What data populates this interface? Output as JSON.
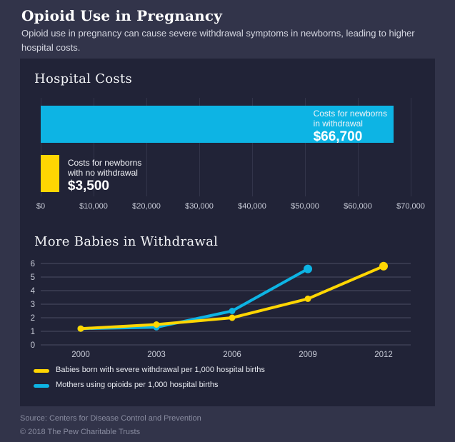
{
  "page": {
    "title": "Opioid Use in Pregnancy",
    "subtitle": "Opioid use in pregnancy can cause severe withdrawal symptoms in newborns, leading to higher hospital costs."
  },
  "colors": {
    "background": "#32344a",
    "panel": "#212337",
    "cyan": "#0db4e4",
    "yellow": "#ffd602",
    "bar_gridline": "#32344a",
    "line_gridline": "#4b4e63",
    "tick_label": "#c9ccd8",
    "footer_text": "#898ca0"
  },
  "chart_data": [
    {
      "type": "bar",
      "orientation": "horizontal",
      "title": "Hospital Costs",
      "xlim": [
        0,
        70000
      ],
      "x_tick_values": [
        0,
        10000,
        20000,
        30000,
        40000,
        50000,
        60000,
        70000
      ],
      "x_ticks": [
        "$0",
        "$10,000",
        "$20,000",
        "$30,000",
        "$40,000",
        "$50,000",
        "$60,000",
        "$70,000"
      ],
      "grid": "vertical",
      "bars": [
        {
          "name": "costs-newborns-in-withdrawal",
          "label_lines": [
            "Costs for newborns",
            "in withdrawal"
          ],
          "value": 66700,
          "value_label": "$66,700",
          "color": "#0db4e4",
          "label_position": "inside"
        },
        {
          "name": "costs-newborns-no-withdrawal",
          "label_lines": [
            "Costs for newborns",
            "with no withdrawal"
          ],
          "value": 3500,
          "value_label": "$3,500",
          "color": "#ffd602",
          "label_position": "outside"
        }
      ]
    },
    {
      "type": "line",
      "title": "More Babies in Withdrawal",
      "x": [
        2000,
        2003,
        2006,
        2009,
        2012
      ],
      "ylim": [
        0,
        6
      ],
      "y_ticks": [
        0,
        1,
        2,
        3,
        4,
        5,
        6
      ],
      "grid": "horizontal",
      "legend_position": "bottom-left",
      "series": [
        {
          "name": "Babies born with severe withdrawal per 1,000 hospital births",
          "color": "#ffd602",
          "values": [
            1.2,
            1.5,
            2.0,
            3.4,
            5.8
          ]
        },
        {
          "name": "Mothers using opioids per 1,000 hospital births",
          "color": "#0db4e4",
          "values": [
            1.2,
            1.3,
            2.5,
            5.6,
            null
          ]
        }
      ]
    }
  ],
  "footer": {
    "source": "Source: Centers for Disease Control and Prevention",
    "copyright": "© 2018 The Pew Charitable Trusts"
  }
}
